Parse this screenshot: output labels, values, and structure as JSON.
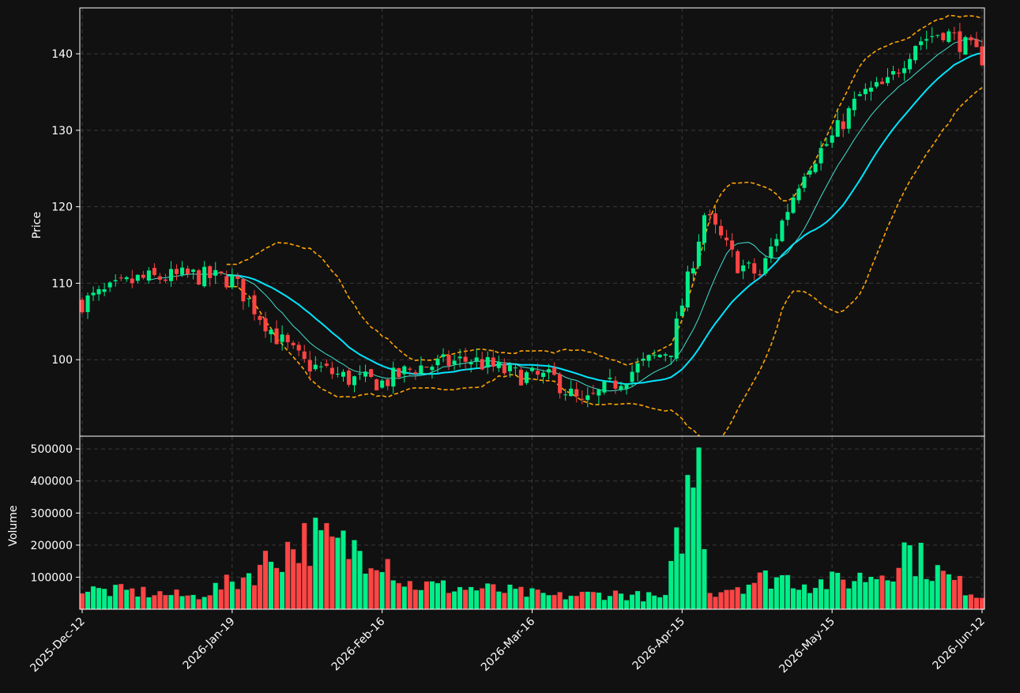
{
  "theme": {
    "background": "#111111",
    "axis_color": "#ffffff",
    "grid_color": "#3a3a3a",
    "up_color": "#00ee88",
    "down_color": "#ff4444",
    "ma_fast_color": "#40e0d0",
    "ma_slow_color": "#00e5ff",
    "band_color": "#ffa500"
  },
  "chart_data": [
    {
      "type": "candlestick",
      "panel": "price",
      "ylabel": "Price",
      "ylim": [
        90.0,
        146.0
      ],
      "yticks": [
        100,
        110,
        120,
        130,
        140
      ],
      "grid": true,
      "x_tick_labels": [
        "2025-Dec-12",
        "2026-Jan-19",
        "2026-Feb-16",
        "2026-Mar-16",
        "2026-Apr-15",
        "2026-May-15",
        "2026-Jun-12"
      ],
      "x_tick_index": [
        0,
        27,
        54,
        81,
        108,
        135,
        162
      ],
      "ohlc_keypoints": [
        [
          0,
          107.5
        ],
        [
          10,
          110.5
        ],
        [
          20,
          111.0
        ],
        [
          27,
          110.5
        ],
        [
          35,
          103.0
        ],
        [
          40,
          99.5
        ],
        [
          48,
          97.5
        ],
        [
          54,
          97.0
        ],
        [
          60,
          99.0
        ],
        [
          70,
          100.0
        ],
        [
          78,
          98.0
        ],
        [
          85,
          97.5
        ],
        [
          90,
          94.0
        ],
        [
          95,
          96.5
        ],
        [
          100,
          99.0
        ],
        [
          106,
          101.5
        ],
        [
          112,
          119.0
        ],
        [
          118,
          112.5
        ],
        [
          122,
          111.0
        ],
        [
          126,
          118.0
        ],
        [
          130,
          125.0
        ],
        [
          135,
          129.0
        ],
        [
          140,
          134.5
        ],
        [
          145,
          136.0
        ],
        [
          150,
          141.5
        ],
        [
          155,
          143.0
        ],
        [
          162,
          139.5
        ]
      ],
      "series": [
        {
          "name": "",
          "kind": "sma-fast"
        },
        {
          "name": "",
          "kind": "sma-slow"
        },
        {
          "name": "",
          "kind": "bollinger-upper"
        },
        {
          "name": "",
          "kind": "bollinger-lower"
        }
      ]
    },
    {
      "type": "bar",
      "panel": "volume",
      "ylabel": "Volume",
      "ylim": [
        0,
        520000
      ],
      "yticks": [
        100000,
        200000,
        300000,
        400000,
        500000
      ],
      "grid": true,
      "volume_keypoints": [
        [
          0,
          60000
        ],
        [
          10,
          55000
        ],
        [
          20,
          40000
        ],
        [
          28,
          90000
        ],
        [
          37,
          190000
        ],
        [
          41,
          220000
        ],
        [
          46,
          195000
        ],
        [
          54,
          180000
        ],
        [
          58,
          80000
        ],
        [
          65,
          70000
        ],
        [
          75,
          60000
        ],
        [
          85,
          40000
        ],
        [
          95,
          50000
        ],
        [
          105,
          35000
        ],
        [
          111,
          505000
        ],
        [
          113,
          55000
        ],
        [
          125,
          105000
        ],
        [
          131,
          80000
        ],
        [
          138,
          90000
        ],
        [
          145,
          120000
        ],
        [
          148,
          190000
        ],
        [
          155,
          105000
        ],
        [
          162,
          40000
        ]
      ]
    }
  ]
}
